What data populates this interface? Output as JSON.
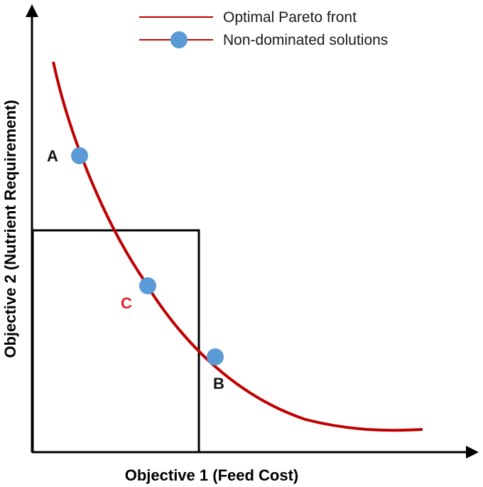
{
  "legend": {
    "front_label": "Optimal Pareto front",
    "solutions_label": "Non-dominated solutions"
  },
  "axes": {
    "x_title": "Objective 1 (Feed Cost)",
    "y_title": "Objective 2 (Nutrient Requirement)"
  },
  "points": [
    {
      "id": "A",
      "label": "A",
      "label_color": "#111111"
    },
    {
      "id": "C",
      "label": "C",
      "label_color": "#e8202a"
    },
    {
      "id": "B",
      "label": "B",
      "label_color": "#111111"
    }
  ],
  "colors": {
    "front": "#c00000",
    "point_fill": "#5b9bd5",
    "axis": "#000000",
    "box": "#000000"
  }
}
